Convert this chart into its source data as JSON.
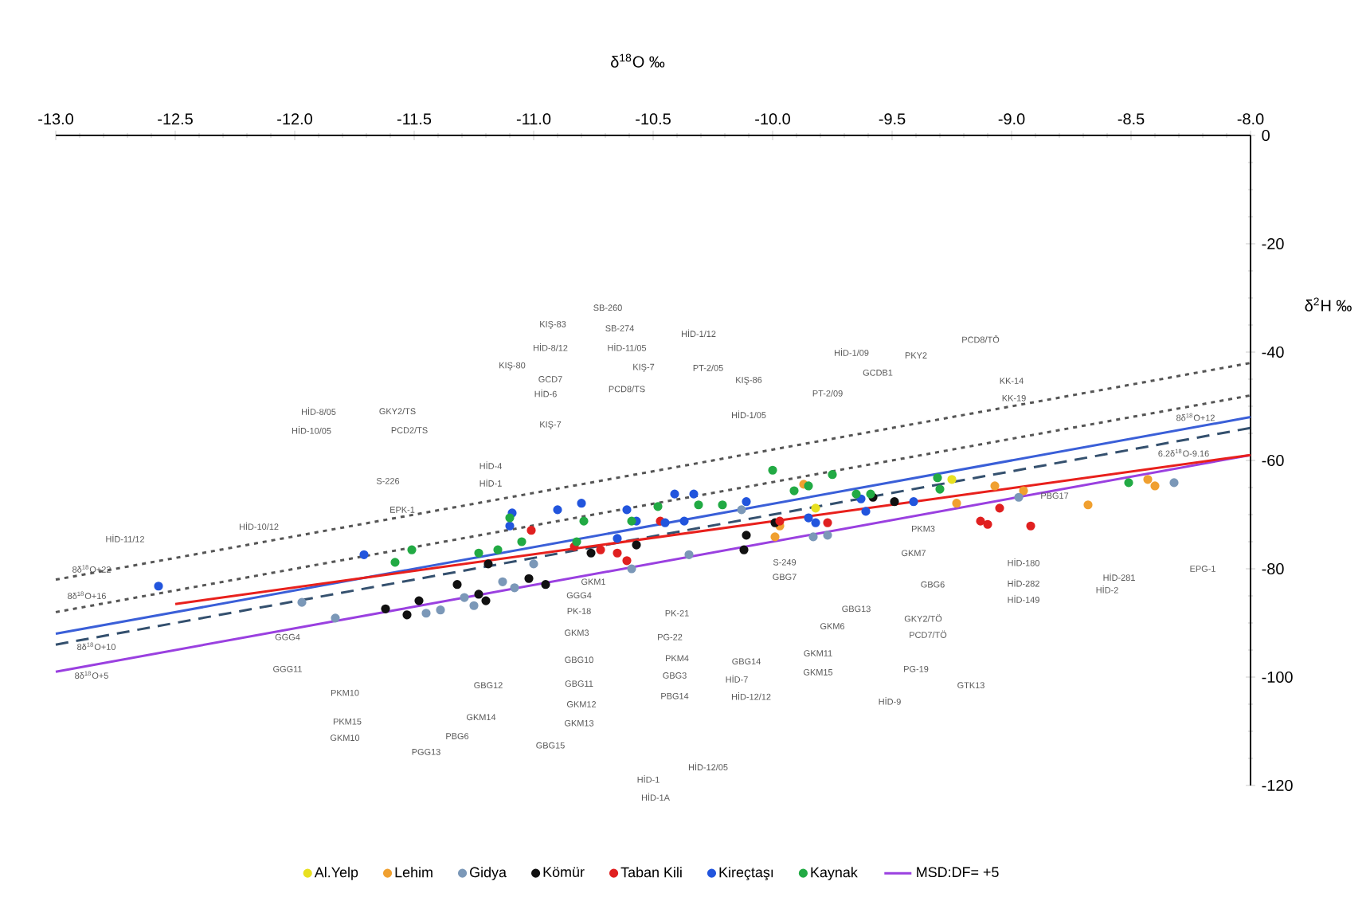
{
  "chart_data": {
    "type": "scatter",
    "xlabel": "δ$^{18}$O ‰",
    "ylabel": "δ$^{2}$H ‰",
    "xlim": [
      -13,
      -8
    ],
    "ylim": [
      -120,
      0
    ],
    "xticks": [
      {
        "value": -13,
        "label": "-13.0"
      },
      {
        "value": -12.5,
        "label": "-12.5"
      },
      {
        "value": -12,
        "label": "-12.0"
      },
      {
        "value": -11.5,
        "label": "-11.5"
      },
      {
        "value": -11,
        "label": "-11.0"
      },
      {
        "value": -10.5,
        "label": "-10.5"
      },
      {
        "value": -10,
        "label": "-10.0"
      },
      {
        "value": -9.5,
        "label": "-9.5"
      },
      {
        "value": -9,
        "label": "-9.0"
      },
      {
        "value": -8.5,
        "label": "-8.5"
      },
      {
        "value": -8,
        "label": "-8.0"
      }
    ],
    "yticks": [
      0,
      -20,
      -40,
      -60,
      -80,
      -100,
      -120
    ],
    "legend": "bottom",
    "series": [
      {
        "name": "Al.Yelp",
        "type": "scatter",
        "color": "#e8e020",
        "x": [
          -9.82,
          -9.25
        ],
        "values": [
          -68.8,
          -63.5
        ]
      },
      {
        "name": "Lehim",
        "type": "scatter",
        "color": "#f0a030",
        "x": [
          -9.87,
          -9.97,
          -9.99,
          -9.23,
          -9.07,
          -8.95,
          -8.68,
          -8.43,
          -8.4
        ],
        "values": [
          -64.4,
          -72.1,
          -74.1,
          -67.9,
          -64.7,
          -65.6,
          -68.2,
          -63.5,
          -64.7
        ]
      },
      {
        "name": "Gidya",
        "type": "scatter",
        "color": "#7b98b8",
        "x": [
          -11.97,
          -11.83,
          -11.45,
          -11.39,
          -11.29,
          -11.25,
          -11.13,
          -11.08,
          -11.0,
          -10.59,
          -10.35,
          -10.13,
          -9.83,
          -9.77,
          -8.97,
          -8.32
        ],
        "values": [
          -86.2,
          -89.1,
          -88.2,
          -87.6,
          -85.3,
          -86.8,
          -82.4,
          -83.5,
          -79.1,
          -80.0,
          -77.4,
          -69.1,
          -74.1,
          -73.8,
          -66.8,
          -64.1
        ]
      },
      {
        "name": "Kömür",
        "type": "scatter",
        "color": "#111111",
        "x": [
          -11.62,
          -11.53,
          -11.48,
          -11.32,
          -11.23,
          -11.2,
          -11.19,
          -11.02,
          -10.95,
          -10.76,
          -10.57,
          -10.12,
          -10.11,
          -9.99,
          -9.58,
          -9.49
        ],
        "values": [
          -87.4,
          -88.5,
          -85.9,
          -82.9,
          -84.7,
          -85.9,
          -79.1,
          -81.8,
          -82.9,
          -77.1,
          -75.6,
          -76.5,
          -73.8,
          -71.5,
          -66.8,
          -67.6
        ]
      },
      {
        "name": "Taban Kili",
        "type": "scatter",
        "color": "#e02020",
        "x": [
          -11.01,
          -10.83,
          -10.72,
          -10.65,
          -10.61,
          -10.47,
          -9.97,
          -9.77,
          -9.13,
          -9.1,
          -9.05,
          -8.92
        ],
        "values": [
          -72.9,
          -75.9,
          -76.5,
          -77.1,
          -78.5,
          -71.2,
          -71.2,
          -71.5,
          -71.2,
          -71.8,
          -68.8,
          -72.1
        ]
      },
      {
        "name": "Kireçtaşı",
        "type": "scatter",
        "color": "#2255dd",
        "x": [
          -12.57,
          -11.71,
          -11.1,
          -11.09,
          -10.9,
          -10.8,
          -10.65,
          -10.61,
          -10.57,
          -10.45,
          -10.41,
          -10.37,
          -10.33,
          -10.11,
          -9.85,
          -9.82,
          -9.63,
          -9.61,
          -9.41
        ],
        "values": [
          -83.2,
          -77.4,
          -72.1,
          -69.7,
          -69.1,
          -67.9,
          -74.4,
          -69.1,
          -71.2,
          -71.5,
          -66.2,
          -71.2,
          -66.2,
          -67.6,
          -70.6,
          -71.5,
          -67.1,
          -69.4,
          -67.6
        ]
      },
      {
        "name": "Kaynak",
        "type": "scatter",
        "color": "#22aa44",
        "x": [
          -11.58,
          -11.51,
          -11.23,
          -11.15,
          -11.1,
          -11.05,
          -10.82,
          -10.79,
          -10.59,
          -10.48,
          -10.31,
          -10.21,
          -10.0,
          -9.91,
          -9.85,
          -9.75,
          -9.65,
          -9.59,
          -9.31,
          -9.3,
          -8.51
        ],
        "values": [
          -78.8,
          -76.5,
          -77.1,
          -76.5,
          -70.6,
          -75.0,
          -75.0,
          -71.2,
          -71.2,
          -68.5,
          -68.2,
          -68.2,
          -61.8,
          -65.6,
          -64.7,
          -62.6,
          -66.2,
          -66.2,
          -63.2,
          -65.3,
          -64.1
        ]
      },
      {
        "name": "MSD:DF= +5",
        "type": "line",
        "color": "#9a40e0",
        "line_style": "solid",
        "x": [
          -13,
          -8
        ],
        "values": [
          -99,
          -59
        ]
      },
      {
        "type": "line",
        "color": "#555555",
        "line_style": "dotted",
        "x": [
          -13,
          -8
        ],
        "values": [
          -82,
          -42
        ]
      },
      {
        "type": "line",
        "color": "#555555",
        "line_style": "dotted",
        "x": [
          -13,
          -8
        ],
        "values": [
          -88,
          -48
        ]
      },
      {
        "type": "line",
        "color": "#34506e",
        "line_style": "dashed",
        "x": [
          -13,
          -8
        ],
        "values": [
          -94,
          -54
        ]
      },
      {
        "type": "line",
        "color": "#3a5fd8",
        "line_style": "solid",
        "x": [
          -13,
          -8
        ],
        "values": [
          -92,
          -52
        ]
      },
      {
        "type": "line",
        "color": "#e8201c",
        "line_style": "solid",
        "x": [
          -12.5,
          -8
        ],
        "values": [
          -86.5,
          -59
        ]
      }
    ],
    "annotations": [
      "8δ$^{18}$O+22",
      "8δ$^{18}$O+16",
      "8δ$^{18}$O+10",
      "8δ$^{18}$O+5",
      "8δ$^{18}$O+12",
      "6.2δ$^{18}$O-9.16",
      "SB-260",
      "KIŞ-83",
      "SB-274",
      "HİD-8/12",
      "HİD-11/05",
      "HİD-1/12",
      "KIŞ-80",
      "KIŞ-7",
      "PT-2/05",
      "GCD7",
      "PCD8/TS",
      "KIŞ-86",
      "HİD-6",
      "HİD-1/05",
      "KIŞ-7",
      "HİD-1/09",
      "PKY2",
      "PCD8/TÖ",
      "GCDB1",
      "PT-2/09",
      "KK-14",
      "KK-19",
      "HİD-8/05",
      "GKY2/TS",
      "HİD-10/05",
      "PCD2/TS",
      "S-226",
      "EPK-1",
      "HİD-4",
      "HİD-1",
      "HİD-10/12",
      "HİD-11/12",
      "GKM1",
      "GGG4",
      "PK-18",
      "GKM3",
      "GBG10",
      "GBG11",
      "GKM12",
      "GKM13",
      "GBG15",
      "GBG12",
      "GKM14",
      "PBG6",
      "PGG13",
      "PKM10",
      "PKM15",
      "GKM10",
      "GGG11",
      "GGG4",
      "S-249",
      "GBG7",
      "PK-21",
      "PG-22",
      "PKM4",
      "GBG3",
      "PBG14",
      "GBG14",
      "HİD-7",
      "HİD-12/12",
      "GKM6",
      "GKM11",
      "GKM15",
      "HİD-9",
      "GBG13",
      "GKY2/TÖ",
      "PCD7/TÖ",
      "PG-19",
      "GTK13",
      "GBG6",
      "PKM3",
      "GKM7",
      "HİD-180",
      "HİD-282",
      "HİD-149",
      "HİD-281",
      "HİD-2",
      "EPG-1",
      "PBG17",
      "HİD-1",
      "HİD-1A",
      "HİD-12/05"
    ]
  }
}
